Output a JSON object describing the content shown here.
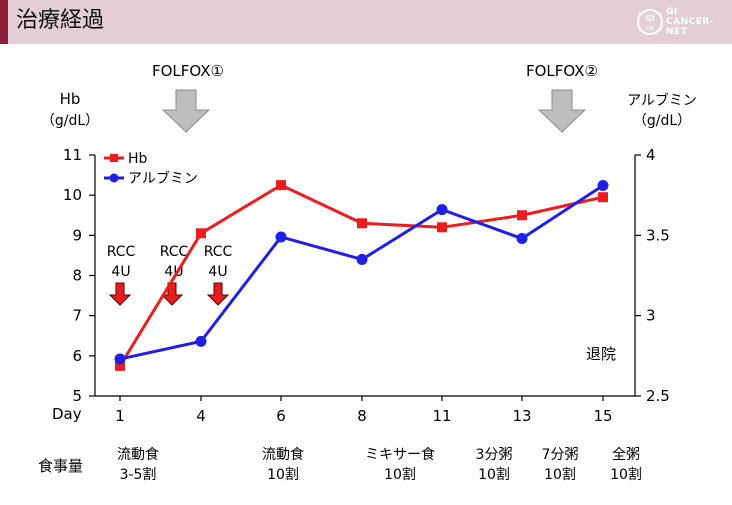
{
  "header": {
    "title": "治療経過",
    "logo_lines": [
      "GI",
      "CANCER-",
      "NET"
    ]
  },
  "chart_data": {
    "type": "line",
    "x": [
      1,
      4,
      6,
      8,
      11,
      13,
      15
    ],
    "x_tick_labels": [
      "1",
      "4",
      "6",
      "8",
      "11",
      "13",
      "15"
    ],
    "x_label": "Day",
    "series": [
      {
        "name": "Hb",
        "axis": "left",
        "color": "#ee1c1c",
        "marker": "square",
        "values": [
          5.75,
          9.05,
          10.25,
          9.3,
          9.2,
          9.5,
          9.95
        ]
      },
      {
        "name": "アルブミン",
        "axis": "right",
        "color": "#1f1fe8",
        "marker": "circle",
        "values": [
          2.73,
          2.84,
          3.49,
          3.35,
          3.66,
          3.48,
          3.81
        ]
      }
    ],
    "y_left": {
      "label_line1": "Hb",
      "label_line2": "（g/dL）",
      "min": 5,
      "max": 11,
      "ticks": [
        "5",
        "6",
        "7",
        "8",
        "9",
        "10",
        "11"
      ]
    },
    "y_right": {
      "label_line1": "アルブミン",
      "label_line2": "（g/dL）",
      "min": 2.5,
      "max": 4,
      "ticks": [
        "2.5",
        "3",
        "3.5",
        "4"
      ]
    },
    "legend_position": "top-left",
    "annotations": {
      "folfox1": "FOLFOX①",
      "folfox2": "FOLFOX②",
      "rcc_labels": [
        {
          "line1": "RCC",
          "line2": "4U"
        },
        {
          "line1": "RCC",
          "line2": "4U"
        },
        {
          "line1": "RCC",
          "line2": "4U"
        }
      ],
      "discharge": "退院"
    },
    "diet": {
      "row_label": "食事量",
      "items": [
        {
          "line1": "流動食",
          "line2": "3-5割"
        },
        {
          "line1": "流動食",
          "line2": "10割"
        },
        {
          "line1": "ミキサー食",
          "line2": "10割"
        },
        {
          "line1": "3分粥",
          "line2": "10割"
        },
        {
          "line1": "7分粥",
          "line2": "10割"
        },
        {
          "line1": "全粥",
          "line2": "10割"
        }
      ]
    }
  }
}
